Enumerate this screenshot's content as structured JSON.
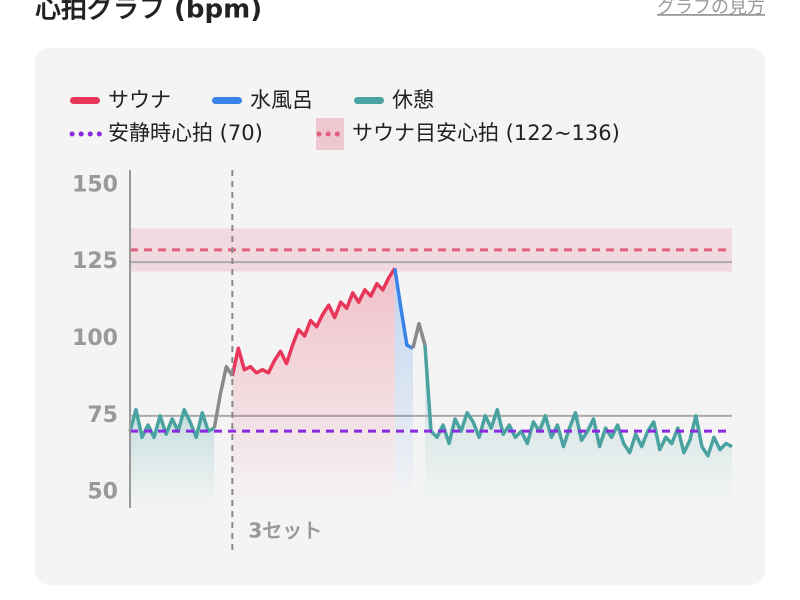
{
  "header": {
    "title": "心拍グラフ (bpm)",
    "link": "グラフの見方"
  },
  "chart_data": {
    "type": "line",
    "ylim": [
      45,
      155
    ],
    "yticks": [
      50,
      75,
      100,
      125,
      150
    ],
    "xlim": [
      0,
      100
    ],
    "reference_lines": [
      75,
      125
    ],
    "resting_hr": {
      "label": "安静時心拍 (70)",
      "value": 70,
      "color": "#8a2be2"
    },
    "sauna_zone": {
      "label": "サウナ目安心拍 (122~136)",
      "range": [
        122,
        136
      ],
      "color": "#e0607e"
    },
    "set_marker": {
      "x": 17,
      "label": "3セット"
    },
    "series": [
      {
        "name": "サウナ",
        "color": "#e8365a",
        "area": true,
        "x": [
          17,
          18,
          19,
          20,
          21,
          22,
          23,
          24,
          25,
          26,
          27,
          28,
          29,
          30,
          31,
          32,
          33,
          34,
          35,
          36,
          37,
          38,
          39,
          40,
          41,
          42,
          43,
          44
        ],
        "values": [
          88,
          97,
          90,
          91,
          89,
          90,
          89,
          93,
          96,
          92,
          98,
          103,
          101,
          106,
          104,
          108,
          111,
          107,
          112,
          110,
          115,
          112,
          116,
          114,
          118,
          116,
          120,
          123
        ]
      },
      {
        "name": "水風呂",
        "color": "#3b82e8",
        "area": true,
        "x": [
          44,
          45,
          46,
          47
        ],
        "values": [
          123,
          110,
          98,
          97
        ]
      },
      {
        "name": "休憩",
        "color": "#4aa3a0",
        "area": true,
        "x": [
          0,
          1,
          2,
          3,
          4,
          5,
          6,
          7,
          8,
          9,
          10,
          11,
          12,
          13,
          14,
          30,
          49,
          50,
          51,
          52,
          53,
          54,
          55,
          56,
          57,
          58,
          59,
          60,
          61,
          62,
          63,
          64,
          65,
          66,
          67,
          68,
          69,
          70,
          71,
          72,
          73,
          74,
          75,
          76,
          77,
          78,
          79,
          80,
          81,
          82,
          83,
          84,
          85,
          86,
          87,
          88,
          89,
          90,
          91,
          92,
          93,
          94,
          95,
          96,
          97,
          98,
          99,
          100
        ],
        "values": [
          70,
          77,
          68,
          72,
          68,
          75,
          69,
          74,
          70,
          77,
          73,
          68,
          76,
          70,
          71,
          null,
          98,
          70,
          68,
          72,
          66,
          74,
          70,
          76,
          73,
          68,
          75,
          71,
          77,
          69,
          72,
          68,
          70,
          66,
          73,
          70,
          75,
          68,
          72,
          65,
          71,
          76,
          67,
          70,
          74,
          65,
          71,
          68,
          72,
          66,
          63,
          69,
          65,
          70,
          73,
          64,
          68,
          66,
          71,
          63,
          67,
          75,
          65,
          62,
          68,
          64,
          66,
          65
        ]
      },
      {
        "color": "#8a8a8a",
        "area": false,
        "x": [
          14,
          15,
          16,
          17,
          30,
          47,
          48,
          49
        ],
        "values": [
          71,
          82,
          91,
          88,
          null,
          97,
          105,
          98
        ]
      }
    ]
  }
}
